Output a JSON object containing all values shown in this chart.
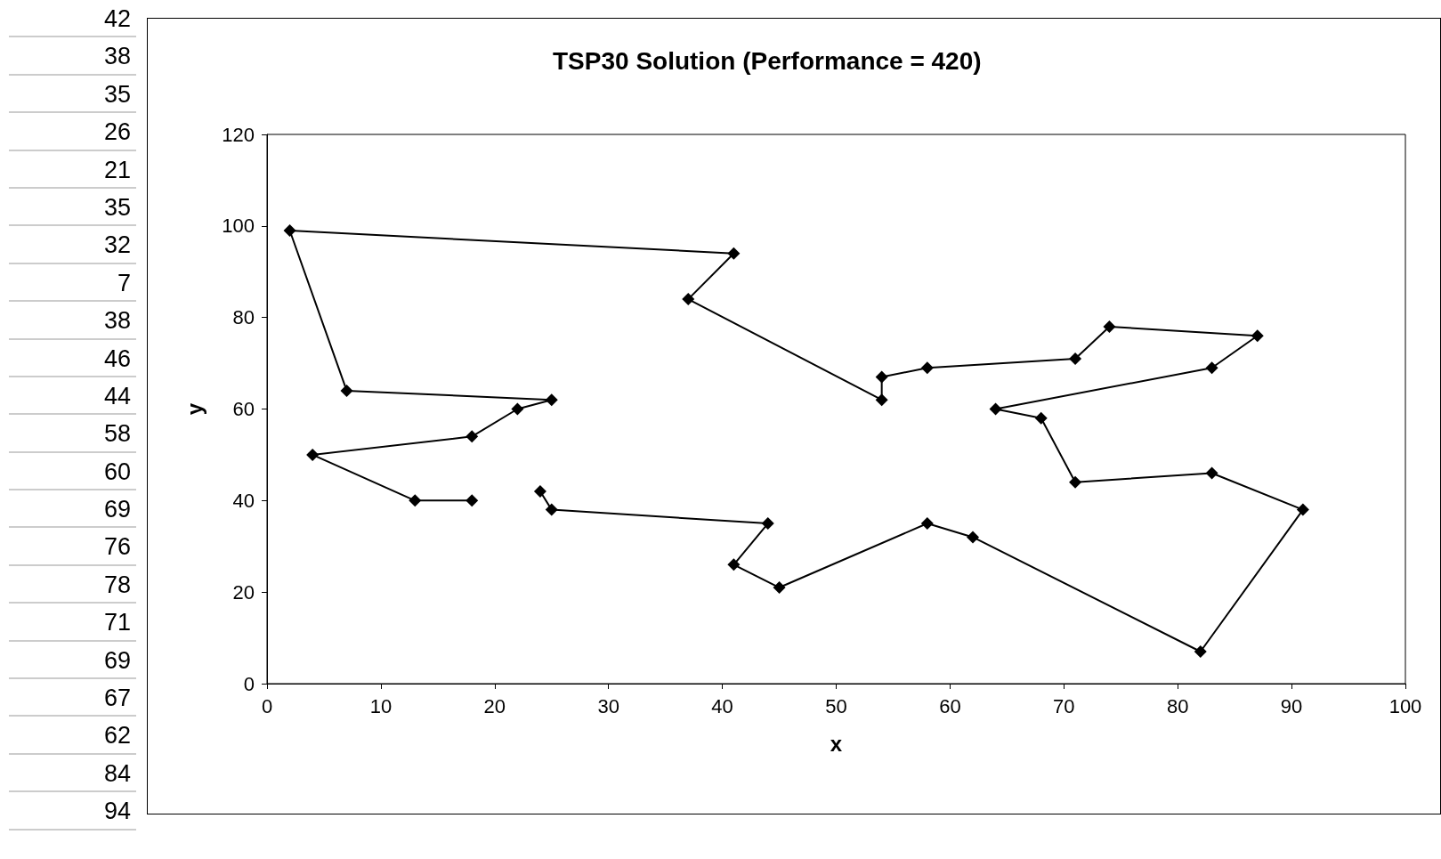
{
  "chart_data": {
    "type": "line",
    "title": "TSP30 Solution (Performance = 420)",
    "xlabel": "x",
    "ylabel": "y",
    "annotations": [
      "42",
      "38",
      "35",
      "26",
      "21",
      "35",
      "32",
      "7",
      "38",
      "46",
      "44",
      "58",
      "60",
      "69",
      "76",
      "78",
      "71",
      "69",
      "67",
      "62",
      "84",
      "94"
    ],
    "series": [
      {
        "color": "#000000",
        "x": [
          18,
          13,
          4,
          18,
          22,
          25,
          7,
          2,
          41,
          37,
          54,
          54,
          58,
          71,
          74,
          87,
          83,
          64,
          68,
          71,
          83,
          91,
          82,
          62,
          58,
          45,
          41,
          44,
          25,
          24
        ],
        "values": [
          40,
          40,
          50,
          54,
          60,
          62,
          64,
          99,
          94,
          84,
          62,
          67,
          69,
          71,
          78,
          76,
          69,
          60,
          58,
          44,
          46,
          38,
          7,
          32,
          35,
          21,
          26,
          35,
          38,
          42
        ]
      }
    ],
    "xlim": [
      0,
      100
    ],
    "xticks": [
      0,
      10,
      20,
      30,
      40,
      50,
      60,
      70,
      80,
      90,
      100
    ],
    "ylim": [
      0,
      120
    ],
    "yticks": [
      0,
      20,
      40,
      60,
      80,
      100,
      120
    ],
    "marker": "diamond",
    "line_style": "solid"
  }
}
